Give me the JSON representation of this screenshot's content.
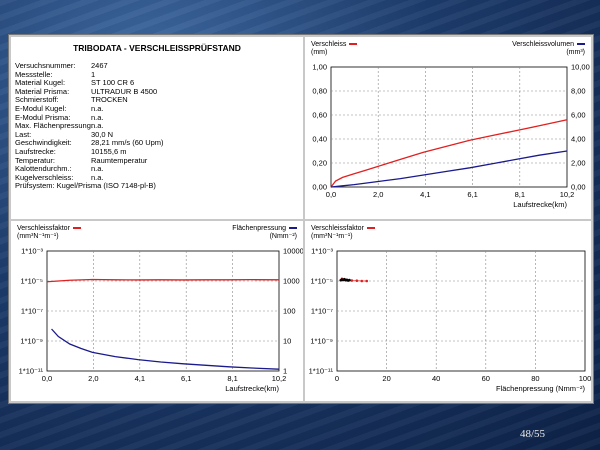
{
  "info": {
    "title": "TRIBODATA - VERSCHLEISSPRÜFSTAND",
    "rows": [
      {
        "label": "Versuchsnummer:",
        "value": "2467"
      },
      {
        "label": "Messstelle:",
        "value": "1"
      },
      {
        "label": "Material Kugel:",
        "value": "ST 100 CR 6"
      },
      {
        "label": "Material Prisma:",
        "value": "ULTRADUR B 4500"
      },
      {
        "label": "Schmierstoff:",
        "value": "TROCKEN"
      },
      {
        "label": "E-Modul Kugel:",
        "value": "n.a."
      },
      {
        "label": "E-Modul Prisma:",
        "value": "n.a."
      },
      {
        "label": "Max. Flächenpressung:",
        "value": "n.a."
      },
      {
        "label": "Last:",
        "value": "30,0 N"
      },
      {
        "label": "Geschwindigkeit:",
        "value": "28,21 mm/s  (60 Upm)"
      },
      {
        "label": "Laufstrecke:",
        "value": "10155,6 m"
      },
      {
        "label": "Temperatur:",
        "value": "Raumtemperatur"
      },
      {
        "label": "Kalottendurchm.:",
        "value": "n.a."
      },
      {
        "label": "Kugelverschleiss:",
        "value": "n.a."
      },
      {
        "label": "Prüfsystem: Kugel/Prisma (ISO 7148-pl-B)",
        "value": ""
      }
    ]
  },
  "colors": {
    "red": "#e02020",
    "blue": "#1a1a8c",
    "grid": "#888888"
  },
  "page_number": "48/55",
  "chart_data": [
    {
      "type": "line",
      "left_legend": "Verschleiss",
      "left_unit": "(mm)",
      "right_legend": "Verschleissvolumen",
      "right_unit": "(mm³)",
      "xlabel": "Laufstrecke(km)",
      "xticks": [
        "0,0",
        "2,0",
        "4,1",
        "6,1",
        "8,1",
        "10,2"
      ],
      "xlim": [
        0,
        10.2
      ],
      "yticks_left": [
        "0,00",
        "0,20",
        "0,40",
        "0,60",
        "0,80",
        "1,00"
      ],
      "ylim_left": [
        0,
        1
      ],
      "yticks_right": [
        "0,00",
        "2,00",
        "4,00",
        "6,00",
        "8,00",
        "10,00"
      ],
      "ylim_right": [
        0,
        10
      ],
      "series": [
        {
          "name": "Verschleiss",
          "axis": "left",
          "color": "red",
          "x": [
            0,
            0.2,
            0.5,
            1,
            1.5,
            2,
            3,
            4,
            5,
            6,
            7,
            8,
            9,
            10.2
          ],
          "y": [
            0,
            0.05,
            0.08,
            0.11,
            0.14,
            0.17,
            0.23,
            0.29,
            0.34,
            0.39,
            0.43,
            0.47,
            0.51,
            0.56
          ]
        },
        {
          "name": "Verschleissvolumen",
          "axis": "right",
          "color": "blue",
          "x": [
            0,
            0.5,
            1,
            2,
            3,
            4,
            5,
            6,
            7,
            8,
            9,
            10.2
          ],
          "y": [
            0,
            0.1,
            0.2,
            0.45,
            0.7,
            1.0,
            1.3,
            1.6,
            1.95,
            2.3,
            2.65,
            3.0
          ]
        }
      ]
    },
    {
      "type": "line",
      "left_legend": "Verschleissfaktor",
      "left_unit": "(mm³N⁻¹m⁻¹)",
      "right_legend": "Flächenpressung",
      "right_unit": "(Nmm⁻²)",
      "xlabel": "Laufstrecke(km)",
      "xticks": [
        "0,0",
        "2,0",
        "4,1",
        "6,1",
        "8,1",
        "10,2"
      ],
      "xlim": [
        0,
        10.2
      ],
      "yticks_left": [
        "1*10⁻³",
        "1*10⁻⁵",
        "1*10⁻⁷",
        "1*10⁻⁹",
        "1*10⁻¹¹"
      ],
      "ylim_left_log10": [
        -11,
        -3
      ],
      "yticks_right": [
        "10000",
        "1000",
        "100",
        "10",
        "1"
      ],
      "ylim_right_log10": [
        0,
        4
      ],
      "series": [
        {
          "name": "Verschleissfaktor",
          "axis": "left",
          "color": "red",
          "x": [
            0,
            0.5,
            1,
            2,
            3,
            4,
            5,
            6,
            7,
            8,
            9,
            10.2
          ],
          "y_log10": [
            -5.05,
            -5.0,
            -4.95,
            -4.9,
            -4.92,
            -4.93,
            -4.92,
            -4.93,
            -4.92,
            -4.92,
            -4.91,
            -4.92
          ]
        },
        {
          "name": "Flächenpressung",
          "axis": "right",
          "color": "blue",
          "x": [
            0.2,
            0.5,
            1,
            1.5,
            2,
            3,
            4,
            5,
            6,
            7,
            8,
            9,
            10.2
          ],
          "y_log10": [
            1.4,
            1.15,
            0.9,
            0.75,
            0.62,
            0.48,
            0.38,
            0.3,
            0.24,
            0.19,
            0.14,
            0.1,
            0.06
          ]
        }
      ]
    },
    {
      "type": "scatter",
      "left_legend": "Verschleissfaktor",
      "left_unit": "(mm³N⁻¹m⁻¹)",
      "xlabel": "Flächenpressung  (Nmm⁻²)",
      "xticks": [
        "0",
        "20",
        "40",
        "60",
        "80",
        "100"
      ],
      "xlim": [
        0,
        100
      ],
      "yticks_left": [
        "1*10⁻³",
        "1*10⁻⁵",
        "1*10⁻⁷",
        "1*10⁻⁹",
        "1*10⁻¹¹"
      ],
      "ylim_left_log10": [
        -11,
        -3
      ],
      "series": [
        {
          "name": "Verschleissfaktor",
          "color": "red",
          "x": [
            12,
            10,
            8,
            6,
            5,
            4,
            3.5,
            3,
            2.5,
            2
          ],
          "y_log10": [
            -5.0,
            -5.0,
            -4.98,
            -4.97,
            -4.95,
            -4.95,
            -4.93,
            -4.92,
            -4.9,
            -4.85
          ]
        },
        {
          "name": "",
          "color": "black",
          "x": [
            1.5,
            2,
            2.5,
            3,
            3.5,
            4,
            4.5,
            5
          ],
          "y_log10": [
            -4.95,
            -4.9,
            -4.93,
            -4.88,
            -4.95,
            -4.92,
            -4.97,
            -4.94
          ]
        }
      ]
    }
  ]
}
